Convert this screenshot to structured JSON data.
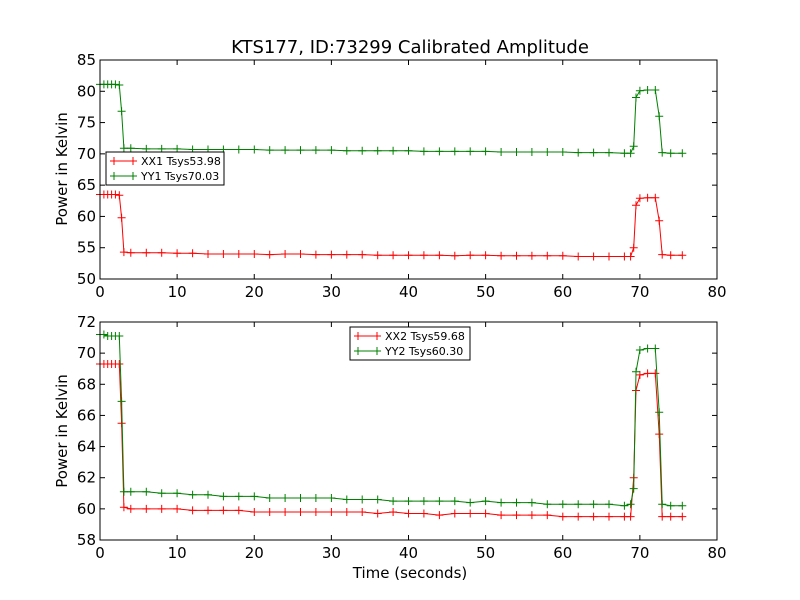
{
  "figure": {
    "title": "KTS177, ID:73299 Calibrated Amplitude"
  },
  "chart_data": [
    {
      "type": "line",
      "title": "KTS177, ID:73299 Calibrated Amplitude",
      "xlabel": "",
      "ylabel": "Power in Kelvin",
      "xlim": [
        0,
        80
      ],
      "ylim": [
        50,
        85
      ],
      "xticks": [
        "0",
        "10",
        "20",
        "30",
        "40",
        "50",
        "60",
        "70",
        "80"
      ],
      "yticks": [
        "50",
        "55",
        "60",
        "65",
        "70",
        "75",
        "80",
        "85"
      ],
      "grid": false,
      "legend_position": "center-left",
      "series": [
        {
          "name": "XX1 Tsys53.98",
          "color": "#ff0000",
          "marker": "plus",
          "points": [
            [
              0,
              63.5
            ],
            [
              0.5,
              63.5
            ],
            [
              1.0,
              63.5
            ],
            [
              1.5,
              63.5
            ],
            [
              2.0,
              63.5
            ],
            [
              2.5,
              63.4
            ],
            [
              2.8,
              59.8
            ],
            [
              3.1,
              54.3
            ],
            [
              4,
              54.2
            ],
            [
              6,
              54.2
            ],
            [
              8,
              54.2
            ],
            [
              10,
              54.1
            ],
            [
              12,
              54.1
            ],
            [
              14,
              54.0
            ],
            [
              16,
              54.0
            ],
            [
              18,
              54.0
            ],
            [
              20,
              54.0
            ],
            [
              22,
              53.9
            ],
            [
              24,
              54.0
            ],
            [
              26,
              54.0
            ],
            [
              28,
              53.9
            ],
            [
              30,
              53.9
            ],
            [
              32,
              53.9
            ],
            [
              34,
              53.9
            ],
            [
              36,
              53.8
            ],
            [
              38,
              53.8
            ],
            [
              40,
              53.8
            ],
            [
              42,
              53.8
            ],
            [
              44,
              53.8
            ],
            [
              46,
              53.7
            ],
            [
              48,
              53.8
            ],
            [
              50,
              53.8
            ],
            [
              52,
              53.7
            ],
            [
              54,
              53.7
            ],
            [
              56,
              53.7
            ],
            [
              58,
              53.7
            ],
            [
              60,
              53.7
            ],
            [
              62,
              53.6
            ],
            [
              64,
              53.6
            ],
            [
              66,
              53.6
            ],
            [
              68,
              53.6
            ],
            [
              68.8,
              53.6
            ],
            [
              69.2,
              55.0
            ],
            [
              69.5,
              61.8
            ],
            [
              70.0,
              62.9
            ],
            [
              71,
              63.0
            ],
            [
              72,
              63.0
            ],
            [
              72.5,
              59.3
            ],
            [
              72.9,
              53.9
            ],
            [
              74,
              53.8
            ],
            [
              75.5,
              53.8
            ]
          ]
        },
        {
          "name": "YY1 Tsys70.03",
          "color": "#008000",
          "marker": "plus",
          "points": [
            [
              0,
              81.1
            ],
            [
              0.5,
              81.1
            ],
            [
              1.0,
              81.1
            ],
            [
              1.5,
              81.1
            ],
            [
              2.0,
              81.1
            ],
            [
              2.5,
              81.0
            ],
            [
              2.8,
              76.8
            ],
            [
              3.1,
              70.9
            ],
            [
              4,
              70.9
            ],
            [
              6,
              70.8
            ],
            [
              8,
              70.8
            ],
            [
              10,
              70.8
            ],
            [
              12,
              70.7
            ],
            [
              14,
              70.7
            ],
            [
              16,
              70.7
            ],
            [
              18,
              70.7
            ],
            [
              20,
              70.7
            ],
            [
              22,
              70.6
            ],
            [
              24,
              70.6
            ],
            [
              26,
              70.6
            ],
            [
              28,
              70.6
            ],
            [
              30,
              70.6
            ],
            [
              32,
              70.5
            ],
            [
              34,
              70.5
            ],
            [
              36,
              70.5
            ],
            [
              38,
              70.5
            ],
            [
              40,
              70.5
            ],
            [
              42,
              70.4
            ],
            [
              44,
              70.4
            ],
            [
              46,
              70.4
            ],
            [
              48,
              70.4
            ],
            [
              50,
              70.4
            ],
            [
              52,
              70.3
            ],
            [
              54,
              70.3
            ],
            [
              56,
              70.3
            ],
            [
              58,
              70.3
            ],
            [
              60,
              70.3
            ],
            [
              62,
              70.2
            ],
            [
              64,
              70.2
            ],
            [
              66,
              70.2
            ],
            [
              68,
              70.1
            ],
            [
              68.8,
              70.1
            ],
            [
              69.2,
              71.2
            ],
            [
              69.5,
              79.0
            ],
            [
              70.0,
              80.1
            ],
            [
              71,
              80.2
            ],
            [
              72,
              80.2
            ],
            [
              72.5,
              76.0
            ],
            [
              72.9,
              70.2
            ],
            [
              74,
              70.1
            ],
            [
              75.5,
              70.1
            ]
          ]
        }
      ]
    },
    {
      "type": "line",
      "title": "",
      "xlabel": "Time (seconds)",
      "ylabel": "Power in Kelvin",
      "xlim": [
        0,
        80
      ],
      "ylim": [
        58,
        72
      ],
      "xticks": [
        "0",
        "10",
        "20",
        "30",
        "40",
        "50",
        "60",
        "70",
        "80"
      ],
      "yticks": [
        "58",
        "60",
        "62",
        "64",
        "66",
        "68",
        "70",
        "72"
      ],
      "grid": false,
      "legend_position": "top-center",
      "series": [
        {
          "name": "XX2 Tsys59.68",
          "color": "#ff0000",
          "marker": "plus",
          "points": [
            [
              0,
              69.3
            ],
            [
              0.5,
              69.3
            ],
            [
              1.0,
              69.3
            ],
            [
              1.5,
              69.3
            ],
            [
              2.0,
              69.3
            ],
            [
              2.5,
              69.3
            ],
            [
              2.8,
              65.5
            ],
            [
              3.1,
              60.1
            ],
            [
              4,
              60.0
            ],
            [
              6,
              60.0
            ],
            [
              8,
              60.0
            ],
            [
              10,
              60.0
            ],
            [
              12,
              59.9
            ],
            [
              14,
              59.9
            ],
            [
              16,
              59.9
            ],
            [
              18,
              59.9
            ],
            [
              20,
              59.8
            ],
            [
              22,
              59.8
            ],
            [
              24,
              59.8
            ],
            [
              26,
              59.8
            ],
            [
              28,
              59.8
            ],
            [
              30,
              59.8
            ],
            [
              32,
              59.8
            ],
            [
              34,
              59.8
            ],
            [
              36,
              59.7
            ],
            [
              38,
              59.8
            ],
            [
              40,
              59.7
            ],
            [
              42,
              59.7
            ],
            [
              44,
              59.6
            ],
            [
              46,
              59.7
            ],
            [
              48,
              59.7
            ],
            [
              50,
              59.7
            ],
            [
              52,
              59.6
            ],
            [
              54,
              59.6
            ],
            [
              56,
              59.6
            ],
            [
              58,
              59.6
            ],
            [
              60,
              59.5
            ],
            [
              62,
              59.5
            ],
            [
              64,
              59.5
            ],
            [
              66,
              59.5
            ],
            [
              68,
              59.5
            ],
            [
              68.8,
              59.5
            ],
            [
              69.2,
              62.0
            ],
            [
              69.5,
              67.6
            ],
            [
              70.0,
              68.6
            ],
            [
              71,
              68.7
            ],
            [
              72,
              68.7
            ],
            [
              72.5,
              64.8
            ],
            [
              72.9,
              59.5
            ],
            [
              74,
              59.5
            ],
            [
              75.5,
              59.5
            ]
          ]
        },
        {
          "name": "YY2 Tsys60.30",
          "color": "#008000",
          "marker": "plus",
          "points": [
            [
              0,
              71.2
            ],
            [
              0.5,
              71.2
            ],
            [
              1.0,
              71.1
            ],
            [
              1.5,
              71.1
            ],
            [
              2.0,
              71.1
            ],
            [
              2.5,
              71.1
            ],
            [
              2.8,
              66.9
            ],
            [
              3.1,
              61.1
            ],
            [
              4,
              61.1
            ],
            [
              6,
              61.1
            ],
            [
              8,
              61.0
            ],
            [
              10,
              61.0
            ],
            [
              12,
              60.9
            ],
            [
              14,
              60.9
            ],
            [
              16,
              60.8
            ],
            [
              18,
              60.8
            ],
            [
              20,
              60.8
            ],
            [
              22,
              60.7
            ],
            [
              24,
              60.7
            ],
            [
              26,
              60.7
            ],
            [
              28,
              60.7
            ],
            [
              30,
              60.7
            ],
            [
              32,
              60.6
            ],
            [
              34,
              60.6
            ],
            [
              36,
              60.6
            ],
            [
              38,
              60.5
            ],
            [
              40,
              60.5
            ],
            [
              42,
              60.5
            ],
            [
              44,
              60.5
            ],
            [
              46,
              60.5
            ],
            [
              48,
              60.4
            ],
            [
              50,
              60.5
            ],
            [
              52,
              60.4
            ],
            [
              54,
              60.4
            ],
            [
              56,
              60.4
            ],
            [
              58,
              60.3
            ],
            [
              60,
              60.3
            ],
            [
              62,
              60.3
            ],
            [
              64,
              60.3
            ],
            [
              66,
              60.3
            ],
            [
              68,
              60.2
            ],
            [
              68.8,
              60.3
            ],
            [
              69.2,
              61.3
            ],
            [
              69.5,
              68.8
            ],
            [
              70.0,
              70.2
            ],
            [
              71,
              70.3
            ],
            [
              72,
              70.3
            ],
            [
              72.5,
              66.2
            ],
            [
              72.9,
              60.3
            ],
            [
              74,
              60.2
            ],
            [
              75.5,
              60.2
            ]
          ]
        }
      ]
    }
  ]
}
